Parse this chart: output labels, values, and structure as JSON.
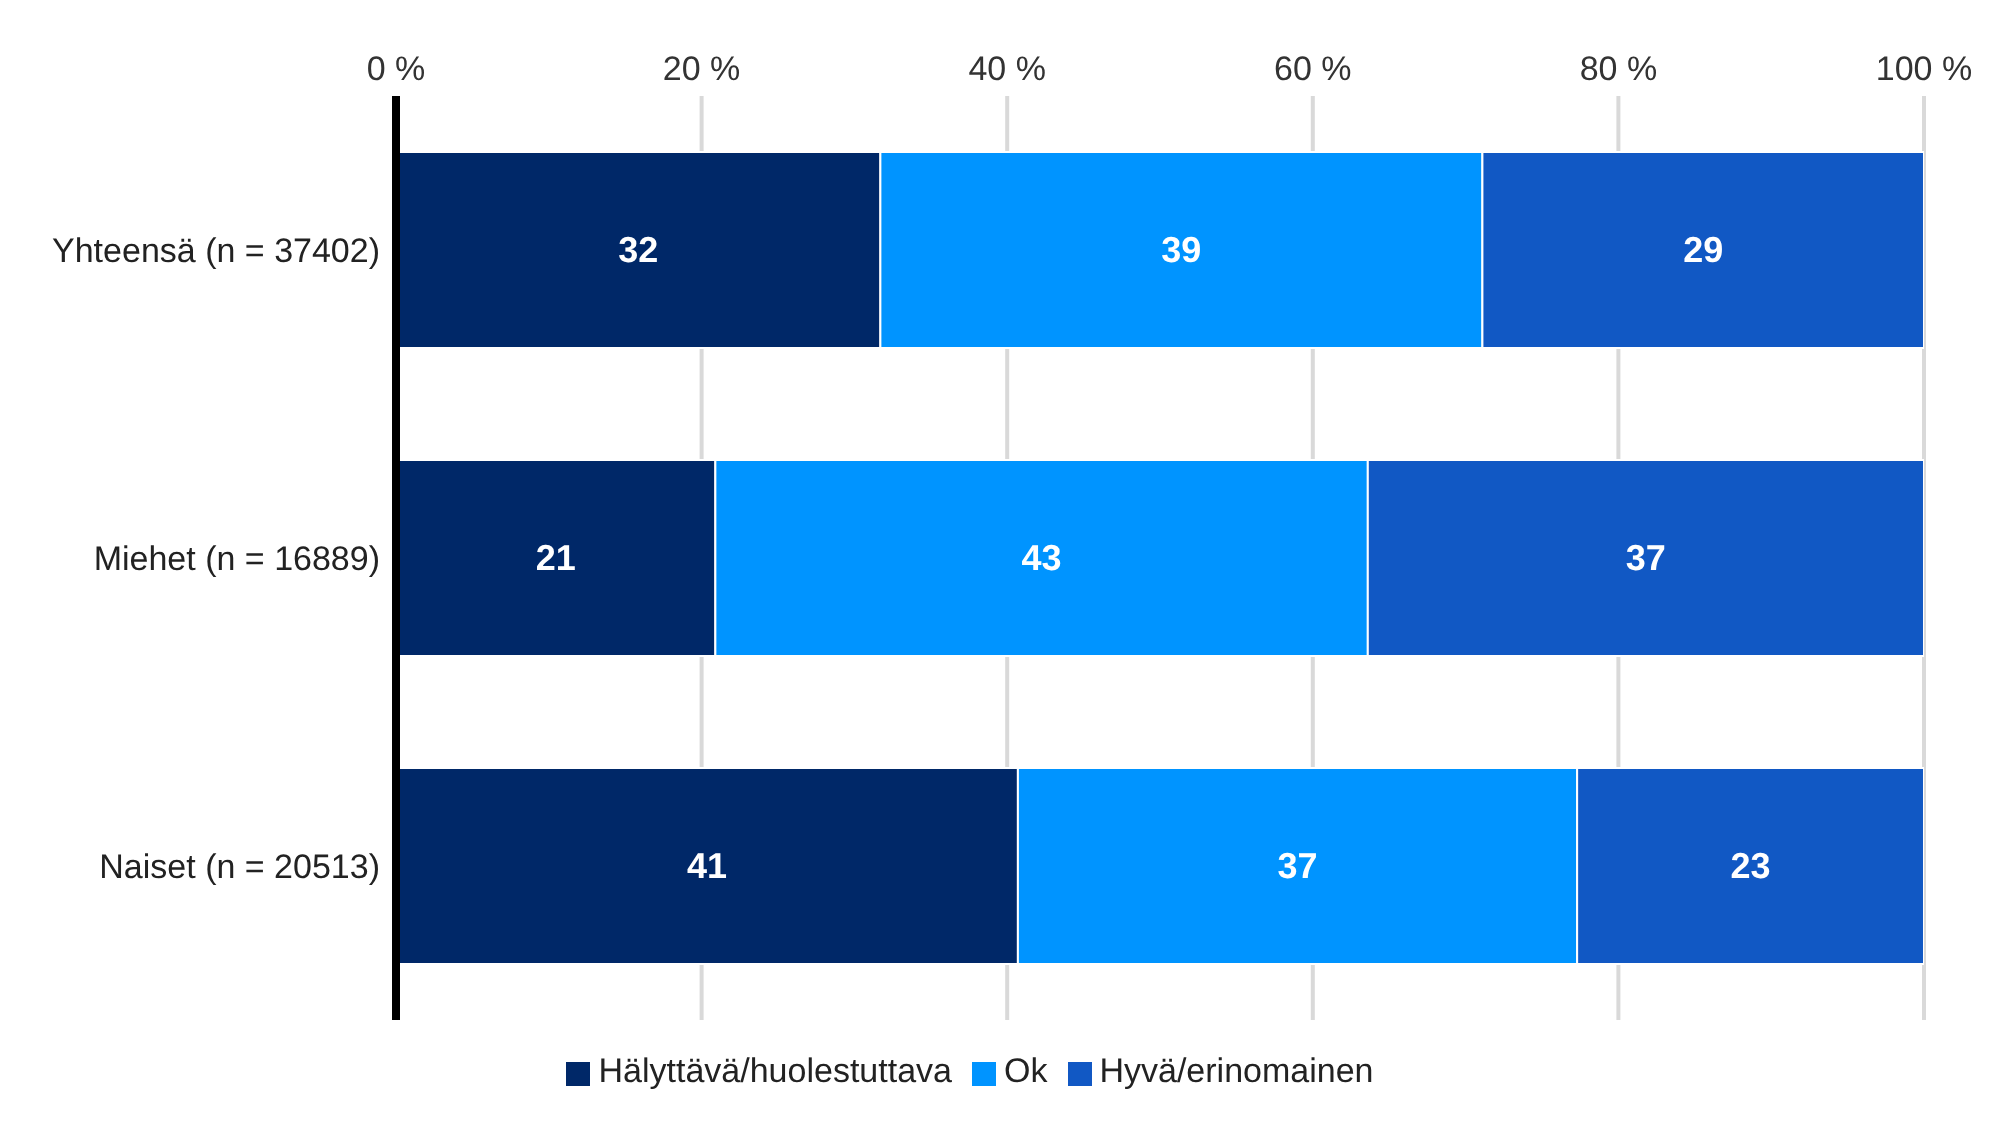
{
  "chart_data": {
    "type": "bar",
    "orientation": "horizontal",
    "stacked": true,
    "categories": [
      "Yhteensä (n = 37402)",
      "Miehet (n = 16889)",
      "Naiset (n = 20513)"
    ],
    "series": [
      {
        "name": "Hälyttävä/huolestuttava",
        "color": "#002868",
        "values": [
          31.7,
          20.9,
          40.7
        ],
        "value_labels": [
          "32",
          "21",
          "41"
        ]
      },
      {
        "name": "Ok",
        "color": "#0094ff",
        "values": [
          39.4,
          42.7,
          36.6
        ],
        "value_labels": [
          "39",
          "43",
          "37"
        ]
      },
      {
        "name": "Hyvä/erinomainen",
        "color": "#1158c4",
        "values": [
          28.9,
          36.5,
          22.7
        ],
        "value_labels": [
          "29",
          "37",
          "23"
        ]
      }
    ],
    "xlim": [
      0,
      100
    ],
    "xticks": [
      {
        "value": 0,
        "label": "0 %"
      },
      {
        "value": 20,
        "label": "20 %"
      },
      {
        "value": 40,
        "label": "40 %"
      },
      {
        "value": 60,
        "label": "60 %"
      },
      {
        "value": 80,
        "label": "80 %"
      },
      {
        "value": 100,
        "label": "100 %"
      }
    ],
    "grid": "x",
    "legend": "bottom"
  }
}
